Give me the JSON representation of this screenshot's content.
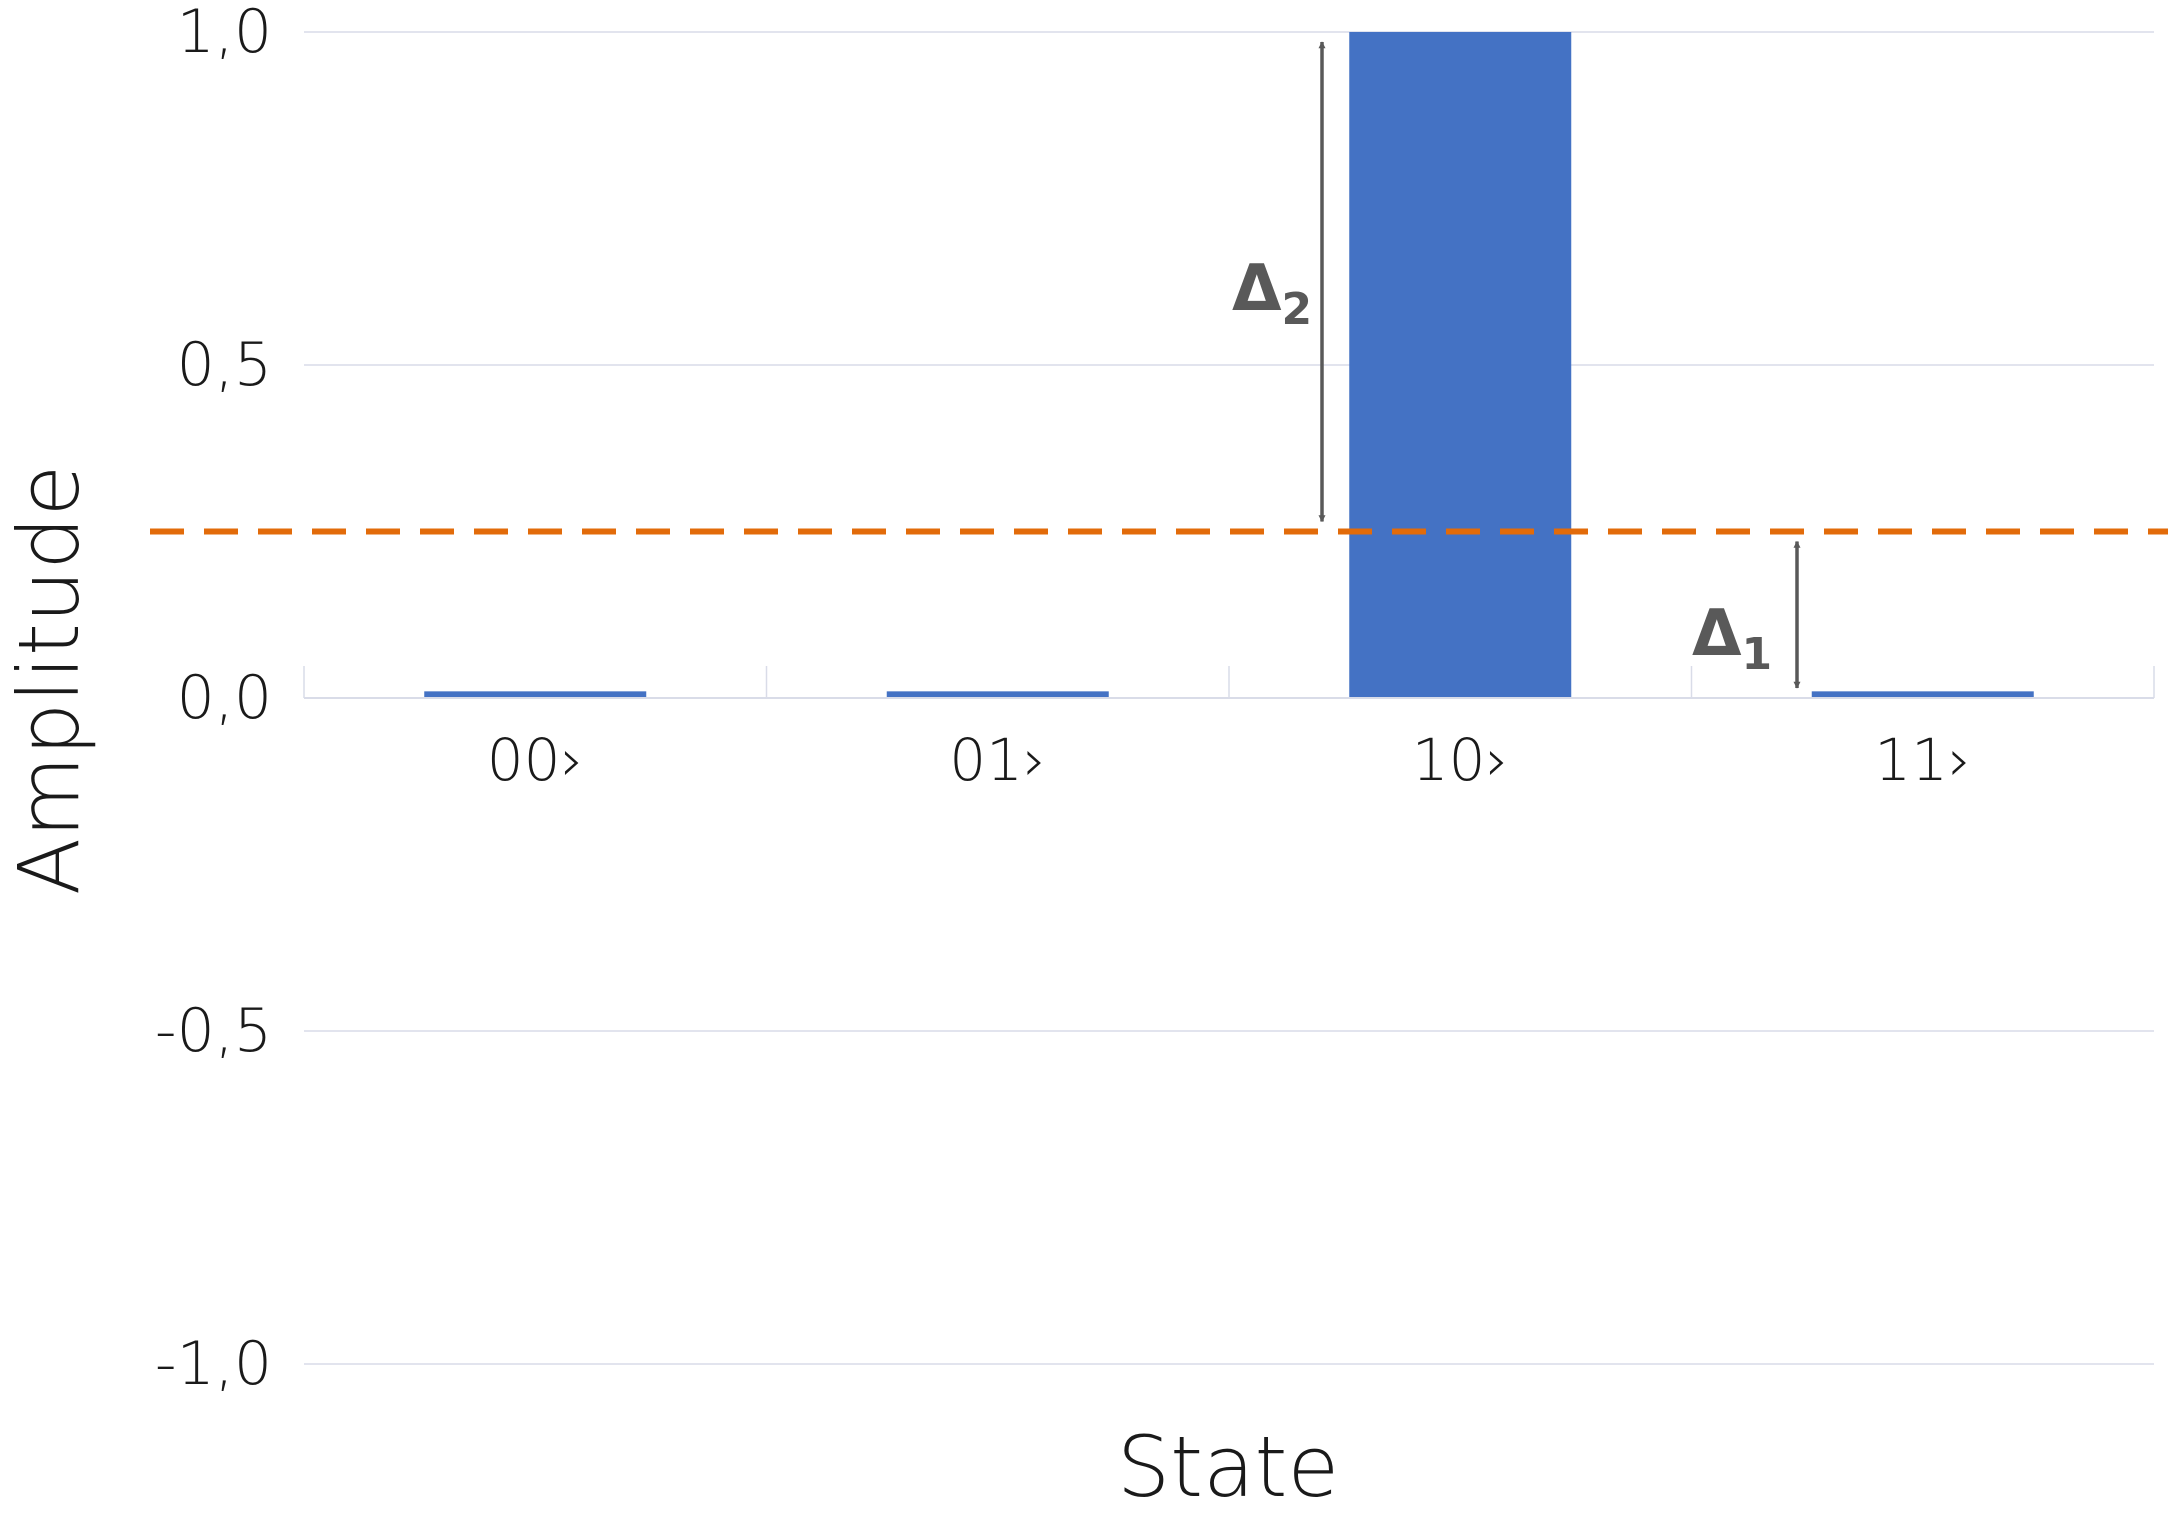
{
  "chart_data": {
    "type": "bar",
    "title": "",
    "xlabel": "State",
    "ylabel": "Amplitude",
    "categories": [
      "00›",
      "01›",
      "10›",
      "11›"
    ],
    "values": [
      0.01,
      0.01,
      1.0,
      0.01
    ],
    "ylim": [
      -1.0,
      1.0
    ],
    "yticks": [
      1.0,
      0.5,
      0.0,
      -0.5,
      -1.0
    ],
    "ytick_labels": [
      "1,0",
      "0,5",
      "0,0",
      "-0,5",
      "-1,0"
    ],
    "grid": true,
    "threshold": {
      "value": 0.25,
      "style": "dashed",
      "color": "#E26B0A"
    },
    "annotations": [
      {
        "symbol": "Δ",
        "subscript": "2",
        "from": 0.25,
        "to": 1.0,
        "near_category": "10›"
      },
      {
        "symbol": "Δ",
        "subscript": "1",
        "from": 0.0,
        "to": 0.25,
        "near_category": "11›"
      }
    ],
    "bar_color": "#4472C4",
    "arrow_color": "#595959"
  }
}
